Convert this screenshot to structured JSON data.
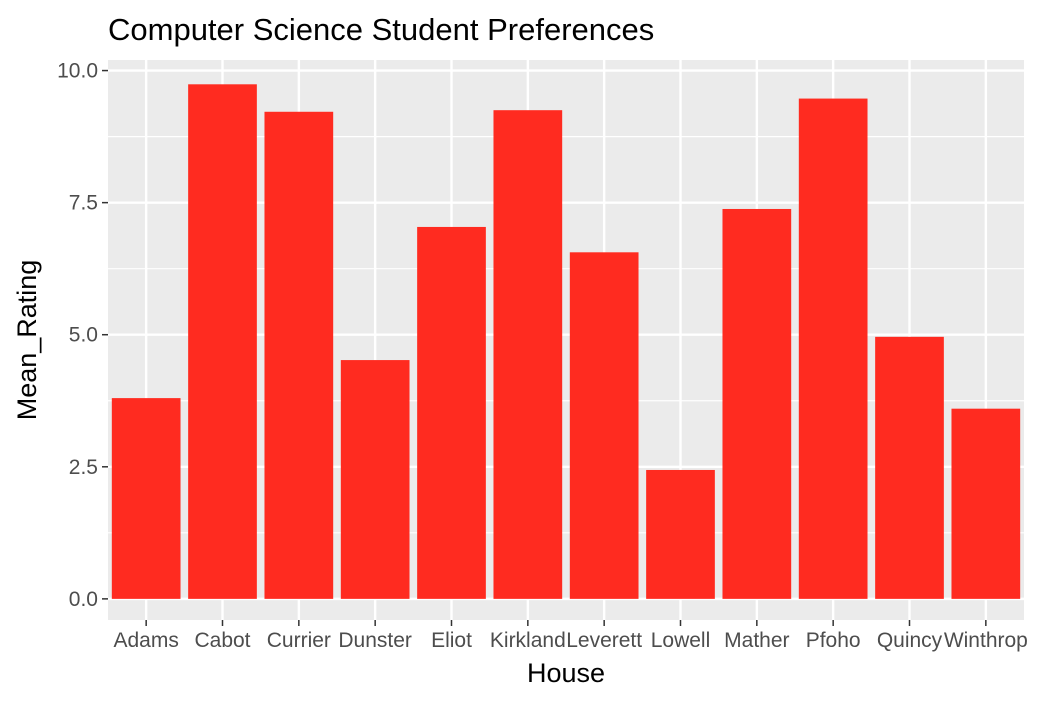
{
  "chart_data": {
    "type": "bar",
    "title": "Computer Science Student Preferences",
    "xlabel": "House",
    "ylabel": "Mean_Rating",
    "categories": [
      "Adams",
      "Cabot",
      "Currier",
      "Dunster",
      "Eliot",
      "Kirkland",
      "Leverett",
      "Lowell",
      "Mather",
      "Pfoho",
      "Quincy",
      "Winthrop"
    ],
    "values": [
      3.8,
      9.74,
      9.22,
      4.52,
      7.04,
      9.25,
      6.56,
      2.44,
      7.38,
      9.47,
      4.96,
      3.6
    ],
    "ylim": [
      -0.4,
      10.2
    ],
    "yticks": [
      0.0,
      2.5,
      5.0,
      7.5,
      10.0
    ],
    "ytick_labels": [
      "0.0",
      "2.5",
      "5.0",
      "7.5",
      "10.0"
    ],
    "grid": true,
    "colors": {
      "bar": "#ff2b20",
      "panel": "#ebebeb",
      "grid": "#ffffff",
      "tick_text": "#4d4d4d",
      "tick_mark": "#333333"
    }
  }
}
